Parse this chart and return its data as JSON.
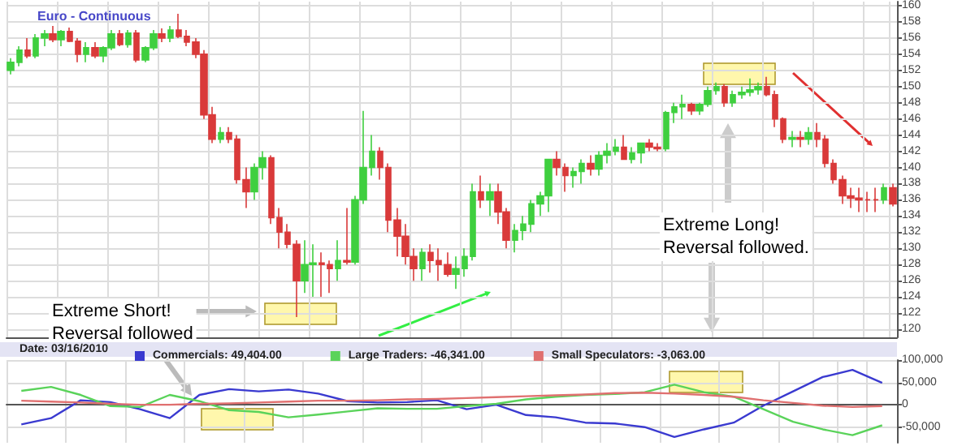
{
  "chart_data": [
    {
      "type": "candlestick",
      "title": "Euro - Continuous",
      "tick_labels": "y",
      "grid": true,
      "colors": [
        "#3fcf3f",
        "#3fcf3f",
        "#d93a3a",
        "#3fcf3f",
        "#3fcf3f",
        "#d93a3a",
        "#3fcf3f",
        "#d93a3a",
        "#d93a3a",
        "#3fcf3f",
        "#d93a3a",
        "#3fcf3f",
        "#3fcf3f",
        "#d93a3a",
        "#3fcf3f",
        "#d93a3a",
        "#3fcf3f",
        "#3fcf3f",
        "#d93a3a",
        "#3fcf3f",
        "#d93a3a",
        "#d93a3a",
        "#d93a3a",
        "#d93a3a",
        "#d93a3a",
        "#3fcf3f",
        "#d93a3a",
        "#d93a3a",
        "#d93a3a",
        "#3fcf3f",
        "#3fcf3f",
        "#d93a3a",
        "#d93a3a",
        "#d93a3a",
        "#d93a3a",
        "#3fcf3f",
        "#3fcf3f",
        "#d93a3a",
        "#d93a3a",
        "#3fcf3f",
        "#d93a3a",
        "#3fcf3f",
        "#3fcf3f",
        "#3fcf3f",
        "#d93a3a",
        "#d93a3a",
        "#d93a3a",
        "#d93a3a",
        "#d93a3a",
        "#3fcf3f",
        "#d93a3a",
        "#d93a3a",
        "#d93a3a",
        "#3fcf3f",
        "#3fcf3f",
        "#3fcf3f",
        "#d93a3a",
        "#3fcf3f",
        "#d93a3a",
        "#d93a3a",
        "#3fcf3f",
        "#3fcf3f",
        "#3fcf3f",
        "#3fcf3f",
        "#3fcf3f",
        "#d93a3a",
        "#d93a3a",
        "#3fcf3f",
        "#3fcf3f",
        "#d93a3a",
        "#3fcf3f",
        "#3fcf3f",
        "#3fcf3f",
        "#d93a3a",
        "#3fcf3f",
        "#3fcf3f",
        "#d93a3a",
        "#d93a3a",
        "#3fcf3f",
        "#3fcf3f",
        "#3fcf3f",
        "#d93a3a",
        "#3fcf3f",
        "#3fcf3f",
        "#3fcf3f",
        "#d93a3a",
        "#3fcf3f",
        "#3fcf3f",
        "#3fcf3f",
        "#3fcf3f",
        "#d93a3a",
        "#d93a3a",
        "#d93a3a",
        "#3fcf3f",
        "#d93a3a",
        "#3fcf3f",
        "#d93a3a",
        "#d93a3a",
        "#d93a3a",
        "#d93a3a",
        "#d93a3a",
        "#d93a3a",
        "#d93a3a",
        "#d93a3a",
        "#3fcf3f",
        "#d93a3a"
      ],
      "annotations": [
        "Extreme Short!\nReversal followed",
        "Extreme Long!\nReversal followed."
      ],
      "ylim": [
        119,
        160.5
      ],
      "yticks": [
        120,
        122,
        124,
        126,
        128,
        130,
        132,
        134,
        136,
        138,
        140,
        142,
        144,
        146,
        148,
        150,
        152,
        154,
        156,
        158,
        160
      ],
      "categories": [
        null,
        null,
        null,
        null,
        null,
        null,
        null,
        null,
        null,
        null,
        null,
        null,
        null,
        null,
        null,
        null,
        null,
        null,
        null,
        null,
        null,
        null,
        null,
        null,
        null,
        null,
        null,
        null,
        null,
        null,
        null,
        null,
        null,
        null,
        null,
        null,
        null,
        null,
        null,
        null,
        null,
        null,
        null,
        null,
        null,
        null,
        null,
        null,
        null,
        null,
        null,
        null,
        null,
        null,
        null,
        null,
        null,
        null,
        null,
        null,
        null,
        null,
        null,
        null,
        null,
        null,
        null,
        null,
        null,
        null,
        null,
        null,
        null,
        null,
        null,
        null,
        null,
        null,
        null,
        null,
        null,
        null,
        null,
        null,
        null,
        null,
        null,
        null,
        null,
        null,
        null,
        null,
        null,
        null,
        null,
        null,
        null,
        null,
        null,
        null,
        null,
        null,
        null,
        null,
        null,
        null
      ],
      "ohlc": [
        [
          152,
          153.5,
          151.5,
          153
        ],
        [
          153,
          155,
          152.5,
          154.5
        ],
        [
          154.5,
          156,
          153.5,
          153.8
        ],
        [
          153.8,
          156.5,
          153.5,
          156
        ],
        [
          156,
          157,
          155,
          156.5
        ],
        [
          156.5,
          157.5,
          155.5,
          155.8
        ],
        [
          155.8,
          157,
          155,
          156.8
        ],
        [
          156.8,
          157.3,
          155.5,
          155.6
        ],
        [
          155.6,
          156,
          153,
          154
        ],
        [
          154,
          155.5,
          153,
          154.8
        ],
        [
          154.8,
          155.5,
          153.5,
          153.8
        ],
        [
          153.8,
          155,
          153,
          154.8
        ],
        [
          154.8,
          157,
          154.5,
          156.5
        ],
        [
          156.5,
          157,
          155,
          155.2
        ],
        [
          155.2,
          157,
          154.8,
          156.6
        ],
        [
          156.6,
          157,
          153,
          153.3
        ],
        [
          153.3,
          155,
          153,
          154.8
        ],
        [
          154.8,
          157,
          154.5,
          156.5
        ],
        [
          156.5,
          157.2,
          155.5,
          156
        ],
        [
          156,
          157.5,
          155.5,
          157
        ],
        [
          157,
          159,
          156,
          156.2
        ],
        [
          156.2,
          157,
          155,
          155.5
        ],
        [
          155.5,
          156,
          153.5,
          154
        ],
        [
          154,
          154.5,
          146,
          146.5
        ],
        [
          146.5,
          147.5,
          143,
          143.5
        ],
        [
          143.5,
          145,
          143,
          144.3
        ],
        [
          144.3,
          145,
          143,
          143.5
        ],
        [
          143.5,
          144,
          138,
          138.5
        ],
        [
          138.5,
          140,
          135,
          137
        ],
        [
          137,
          140.5,
          136,
          140
        ],
        [
          140,
          142,
          138.5,
          141.2
        ],
        [
          141.2,
          141.5,
          133,
          133.8
        ],
        [
          133.8,
          135,
          130,
          132
        ],
        [
          132,
          133,
          130,
          130.5
        ],
        [
          130.5,
          131,
          121.5,
          126
        ],
        [
          126,
          131,
          124.5,
          128
        ],
        [
          128,
          130.5,
          124,
          128.2
        ],
        [
          128.2,
          129.5,
          124,
          128
        ],
        [
          128,
          128.5,
          124.5,
          127.5
        ],
        [
          127.5,
          131,
          126,
          128.5
        ],
        [
          128.5,
          135,
          128,
          128.3
        ],
        [
          128.3,
          136.5,
          128,
          136
        ],
        [
          136,
          147,
          135.5,
          140
        ],
        [
          140,
          144,
          139,
          142
        ],
        [
          142,
          142.5,
          138.5,
          140
        ],
        [
          140,
          140.5,
          132,
          133.5
        ],
        [
          133.5,
          135,
          129,
          131.5
        ],
        [
          131.5,
          133,
          128,
          129
        ],
        [
          129,
          130,
          126,
          127.5
        ],
        [
          127.5,
          130,
          126,
          129.5
        ],
        [
          129.5,
          130.5,
          127,
          128.5
        ],
        [
          128.5,
          130,
          126,
          128
        ],
        [
          128,
          129.5,
          126.5,
          126.8
        ],
        [
          126.8,
          129,
          125,
          127.5
        ],
        [
          127.5,
          130,
          126.5,
          129
        ],
        [
          129,
          138,
          128.5,
          137
        ],
        [
          137,
          139,
          135,
          136
        ],
        [
          136,
          138,
          134,
          137
        ],
        [
          137,
          138,
          133,
          134.5
        ],
        [
          134.5,
          135,
          130,
          131
        ],
        [
          131,
          133,
          129.5,
          132.2
        ],
        [
          132.2,
          134,
          131,
          133
        ],
        [
          133,
          136,
          132,
          135.5
        ],
        [
          135.5,
          137,
          134,
          136.5
        ],
        [
          136.5,
          141,
          134.5,
          141
        ],
        [
          141,
          142,
          139,
          140
        ],
        [
          140,
          140.5,
          137,
          139
        ],
        [
          139,
          140,
          137.5,
          139.5
        ],
        [
          139.5,
          141,
          138,
          140.5
        ],
        [
          140.5,
          141.5,
          139,
          139.8
        ],
        [
          139.8,
          142,
          139,
          141.5
        ],
        [
          141.5,
          143,
          140.5,
          142
        ],
        [
          142,
          143.5,
          141.5,
          142.5
        ],
        [
          142.5,
          144,
          141,
          141
        ],
        [
          141,
          142.5,
          140.5,
          141.8
        ],
        [
          141.8,
          143,
          140.5,
          143
        ],
        [
          143,
          143.5,
          142,
          142.5
        ],
        [
          142.5,
          143,
          142,
          142.3
        ],
        [
          142.3,
          147,
          142,
          146.8
        ],
        [
          146.8,
          148,
          145.5,
          147.5
        ],
        [
          147.5,
          149,
          146,
          147.8
        ],
        [
          147.8,
          148,
          146.5,
          147
        ],
        [
          147,
          148,
          146.5,
          147.8
        ],
        [
          147.8,
          150,
          147.5,
          149.5
        ],
        [
          149.5,
          150.5,
          149,
          150
        ],
        [
          150,
          150.3,
          147.5,
          148
        ],
        [
          148,
          149.5,
          147.5,
          149
        ],
        [
          149,
          150,
          148.5,
          149.3
        ],
        [
          149.3,
          151,
          148.8,
          149.6
        ],
        [
          149.6,
          150.5,
          149,
          150
        ],
        [
          150,
          151.2,
          148.8,
          149
        ],
        [
          149,
          149.5,
          145,
          146
        ],
        [
          146,
          146.2,
          143,
          143.5
        ],
        [
          143.5,
          144.5,
          142.5,
          143.7
        ],
        [
          143.7,
          144.5,
          142.5,
          143.5
        ],
        [
          143.5,
          145,
          142.8,
          144.3
        ],
        [
          144.3,
          145.5,
          142.5,
          143.5
        ],
        [
          143.5,
          144,
          140,
          140.5
        ],
        [
          140.5,
          141,
          138,
          138.5
        ],
        [
          138.5,
          139,
          135.5,
          136.5
        ],
        [
          136.5,
          137.5,
          135,
          136.2
        ],
        [
          136.2,
          137.5,
          134.5,
          136
        ],
        [
          136,
          137,
          134.5,
          136
        ],
        [
          136,
          137.5,
          134.5,
          136
        ],
        [
          136,
          138,
          135.5,
          137.5
        ],
        [
          137.5,
          138,
          135.2,
          135.5
        ]
      ]
    },
    {
      "type": "line",
      "tick_labels": "y",
      "grid": true,
      "legend": "top left",
      "annotations": [
        "Date: 03/16/2010"
      ],
      "ylim": [
        -85000,
        100000
      ],
      "yticks": [
        {
          "value": -50000,
          "label": "-50,000"
        },
        0,
        {
          "value": 50000,
          "label": "50,000"
        },
        {
          "value": 100000,
          "label": "100,000"
        }
      ],
      "categories": [
        null,
        null,
        null,
        null,
        null,
        null,
        null,
        null,
        null,
        null,
        null,
        null,
        null,
        null,
        null,
        null,
        null,
        null,
        null,
        null,
        null,
        null,
        null,
        null,
        null,
        null,
        null,
        null,
        null,
        null
      ],
      "series": [
        {
          "name": "Commercials: 49,404.00",
          "color": "#3a3ad0",
          "values": [
            -44000,
            -30000,
            10000,
            6000,
            -10000,
            -30000,
            22000,
            35000,
            30000,
            34000,
            25000,
            8000,
            5000,
            6000,
            10000,
            -10000,
            0,
            -23000,
            -28000,
            -40000,
            -42000,
            -50000,
            -72000,
            -55000,
            -40000,
            -2000,
            30000,
            62000,
            78000,
            49000
          ]
        },
        {
          "name": "Large Traders: -46,341.00",
          "color": "#5ad35a",
          "values": [
            31000,
            40000,
            22000,
            -3000,
            -5000,
            22000,
            8000,
            -12000,
            -16000,
            -28000,
            -22000,
            -15000,
            -8000,
            -9000,
            -9000,
            -3000,
            2000,
            12000,
            18000,
            22000,
            24000,
            28000,
            45000,
            28000,
            18000,
            -10000,
            -38000,
            -55000,
            -68000,
            -46000
          ]
        },
        {
          "name": "Small Speculators: -3,063.00",
          "color": "#e07070",
          "values": [
            9000,
            7000,
            5000,
            2000,
            0,
            0,
            2000,
            3000,
            5000,
            7000,
            9000,
            9000,
            10000,
            12000,
            13000,
            15000,
            17000,
            19000,
            21000,
            23000,
            26000,
            27000,
            25000,
            22000,
            18000,
            10000,
            4000,
            -2000,
            -5000,
            -3000
          ]
        }
      ]
    }
  ]
}
